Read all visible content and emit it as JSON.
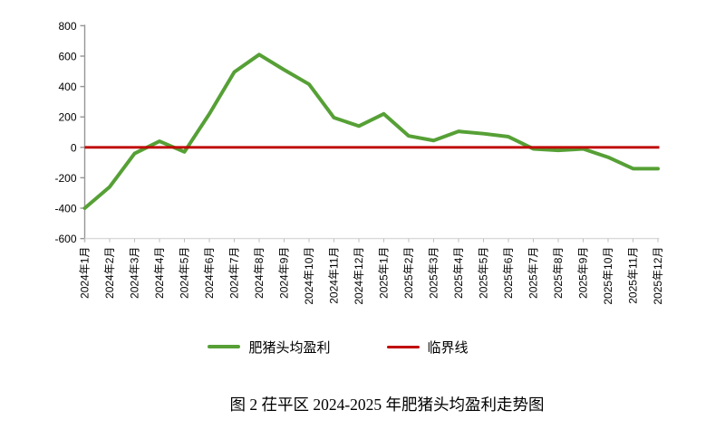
{
  "figure": {
    "caption": "图 2  茌平区 2024-2025 年肥猪头均盈利走势图"
  },
  "legend": {
    "items": [
      {
        "label": "肥猪头均盈利",
        "color": "#56A036",
        "shape": "line"
      },
      {
        "label": "临界线",
        "color": "#C00000",
        "shape": "line"
      }
    ]
  },
  "chart_data": {
    "type": "line",
    "title": "",
    "xlabel": "",
    "ylabel": "",
    "categories": [
      "2024年1月",
      "2024年2月",
      "2024年3月",
      "2024年4月",
      "2024年5月",
      "2024年6月",
      "2024年7月",
      "2024年8月",
      "2024年9月",
      "2024年10月",
      "2024年11月",
      "2024年12月",
      "2025年1月",
      "2025年2月",
      "2025年3月",
      "2025年4月",
      "2025年5月",
      "2025年6月",
      "2025年7月",
      "2025年8月",
      "2025年9月",
      "2025年10月",
      "2025年11月",
      "2025年12月"
    ],
    "series": [
      {
        "name": "肥猪头均盈利",
        "color": "#56A036",
        "values": [
          -400,
          -260,
          -40,
          40,
          -30,
          220,
          495,
          610,
          510,
          415,
          195,
          140,
          220,
          75,
          45,
          105,
          90,
          70,
          -10,
          -20,
          -10,
          -65,
          -140,
          -140
        ]
      }
    ],
    "reference_lines": [
      {
        "name": "临界线",
        "color": "#C00000",
        "value": 0
      }
    ],
    "ylim": [
      -600,
      800
    ],
    "yticks": [
      800,
      600,
      400,
      200,
      0,
      -200,
      -400,
      -600
    ],
    "grid": false,
    "legend_position": "bottom",
    "axis_colors": {
      "y_axis": "#959595",
      "x_axis": "#D9D9D9",
      "x_tick": "#BFBFBF"
    }
  }
}
